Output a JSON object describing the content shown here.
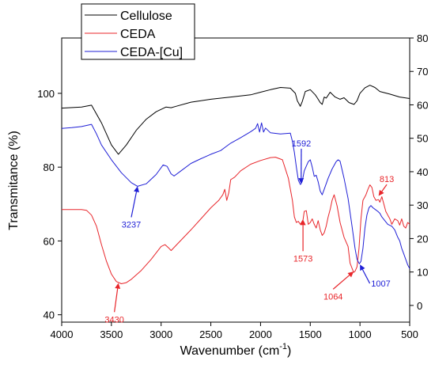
{
  "chart_data": {
    "type": "line",
    "xlabel": "Wavenumber (cm",
    "xlabel_sup": "-1",
    "xlabel_tail": ")",
    "ylabel": "Transmitance (%)",
    "xlim": [
      4000,
      500
    ],
    "ylim_left": [
      38,
      115
    ],
    "ylim_right": [
      -5,
      80
    ],
    "x_ticks": [
      4000,
      3500,
      3000,
      2500,
      2000,
      1500,
      1000,
      500
    ],
    "y_ticks_left": [
      40,
      60,
      80,
      100
    ],
    "y_ticks_right": [
      0,
      10,
      20,
      30,
      40,
      50,
      60,
      70,
      80
    ],
    "legend_position": "top-left",
    "series": [
      {
        "name": "Cellulose",
        "color": "#000000",
        "axis": "left",
        "points": [
          [
            4000,
            96
          ],
          [
            3800,
            96.3
          ],
          [
            3700,
            96.8
          ],
          [
            3600,
            92
          ],
          [
            3500,
            86
          ],
          [
            3430,
            83.5
          ],
          [
            3350,
            86
          ],
          [
            3250,
            90
          ],
          [
            3150,
            93
          ],
          [
            3050,
            95
          ],
          [
            2950,
            96.3
          ],
          [
            2900,
            96.1
          ],
          [
            2850,
            96.5
          ],
          [
            2700,
            97.6
          ],
          [
            2500,
            98.4
          ],
          [
            2300,
            99
          ],
          [
            2100,
            99.6
          ],
          [
            2000,
            100.3
          ],
          [
            1900,
            101
          ],
          [
            1800,
            101.6
          ],
          [
            1700,
            101.4
          ],
          [
            1650,
            100
          ],
          [
            1630,
            98
          ],
          [
            1600,
            96.5
          ],
          [
            1580,
            97.8
          ],
          [
            1550,
            100.5
          ],
          [
            1500,
            101
          ],
          [
            1450,
            99.6
          ],
          [
            1430,
            98.8
          ],
          [
            1400,
            97.5
          ],
          [
            1380,
            97
          ],
          [
            1360,
            99
          ],
          [
            1340,
            98.7
          ],
          [
            1320,
            99.5
          ],
          [
            1300,
            100.3
          ],
          [
            1250,
            99
          ],
          [
            1200,
            98.4
          ],
          [
            1160,
            98.8
          ],
          [
            1110,
            97.5
          ],
          [
            1060,
            97
          ],
          [
            1030,
            98
          ],
          [
            1000,
            100
          ],
          [
            950,
            101.5
          ],
          [
            900,
            102.2
          ],
          [
            850,
            101.6
          ],
          [
            800,
            100.5
          ],
          [
            700,
            99.8
          ],
          [
            600,
            99
          ],
          [
            500,
            98.6
          ]
        ]
      },
      {
        "name": "CEDA",
        "color": "#e8252a",
        "axis": "left",
        "points": [
          [
            4000,
            68.5
          ],
          [
            3800,
            68.5
          ],
          [
            3750,
            68.3
          ],
          [
            3700,
            67
          ],
          [
            3650,
            64
          ],
          [
            3600,
            59
          ],
          [
            3550,
            54.5
          ],
          [
            3500,
            51
          ],
          [
            3450,
            49
          ],
          [
            3400,
            48.4
          ],
          [
            3350,
            48.7
          ],
          [
            3300,
            49.6
          ],
          [
            3200,
            52
          ],
          [
            3100,
            55
          ],
          [
            3000,
            58.5
          ],
          [
            2960,
            59
          ],
          [
            2920,
            58
          ],
          [
            2900,
            57.4
          ],
          [
            2850,
            58.8
          ],
          [
            2700,
            63
          ],
          [
            2600,
            66
          ],
          [
            2500,
            69
          ],
          [
            2420,
            71
          ],
          [
            2380,
            72.5
          ],
          [
            2360,
            74
          ],
          [
            2340,
            71
          ],
          [
            2320,
            73
          ],
          [
            2300,
            76.6
          ],
          [
            2260,
            77.3
          ],
          [
            2200,
            79
          ],
          [
            2100,
            80.8
          ],
          [
            2000,
            81.8
          ],
          [
            1900,
            82.6
          ],
          [
            1850,
            82.7
          ],
          [
            1780,
            82
          ],
          [
            1720,
            77
          ],
          [
            1680,
            71
          ],
          [
            1660,
            66.5
          ],
          [
            1640,
            65
          ],
          [
            1620,
            65.3
          ],
          [
            1600,
            64.5
          ],
          [
            1573,
            65.7
          ],
          [
            1560,
            68
          ],
          [
            1540,
            68.2
          ],
          [
            1520,
            64.5
          ],
          [
            1500,
            65
          ],
          [
            1480,
            66
          ],
          [
            1460,
            64.5
          ],
          [
            1440,
            63.5
          ],
          [
            1420,
            65.5
          ],
          [
            1400,
            63
          ],
          [
            1380,
            61.5
          ],
          [
            1360,
            62.2
          ],
          [
            1340,
            64
          ],
          [
            1320,
            66.5
          ],
          [
            1300,
            68.5
          ],
          [
            1280,
            71
          ],
          [
            1260,
            72.5
          ],
          [
            1230,
            69.5
          ],
          [
            1200,
            65
          ],
          [
            1160,
            61
          ],
          [
            1120,
            58.5
          ],
          [
            1100,
            54
          ],
          [
            1064,
            51.5
          ],
          [
            1050,
            51.8
          ],
          [
            1030,
            53
          ],
          [
            1010,
            58
          ],
          [
            990,
            66
          ],
          [
            970,
            71
          ],
          [
            940,
            72.5
          ],
          [
            920,
            74
          ],
          [
            900,
            75.2
          ],
          [
            880,
            74.5
          ],
          [
            860,
            72
          ],
          [
            840,
            71
          ],
          [
            813,
            71.2
          ],
          [
            800,
            70.5
          ],
          [
            780,
            72
          ],
          [
            760,
            70
          ],
          [
            740,
            68
          ],
          [
            720,
            67
          ],
          [
            700,
            66
          ],
          [
            680,
            64.5
          ],
          [
            650,
            66
          ],
          [
            620,
            65.5
          ],
          [
            600,
            64.3
          ],
          [
            580,
            66
          ],
          [
            560,
            64
          ],
          [
            540,
            63.5
          ],
          [
            520,
            65
          ],
          [
            500,
            64.5
          ]
        ]
      },
      {
        "name": "CEDA-[Cu]",
        "color": "#1f1fd6",
        "axis": "left",
        "points": [
          [
            4000,
            90.5
          ],
          [
            3900,
            90.7
          ],
          [
            3800,
            91
          ],
          [
            3700,
            91.6
          ],
          [
            3650,
            89
          ],
          [
            3600,
            86
          ],
          [
            3500,
            82
          ],
          [
            3400,
            78.5
          ],
          [
            3300,
            75.8
          ],
          [
            3237,
            74.8
          ],
          [
            3150,
            75.5
          ],
          [
            3050,
            78
          ],
          [
            2980,
            80.6
          ],
          [
            2940,
            80.2
          ],
          [
            2900,
            78.2
          ],
          [
            2870,
            77.6
          ],
          [
            2800,
            79
          ],
          [
            2700,
            81
          ],
          [
            2600,
            82.3
          ],
          [
            2500,
            83.5
          ],
          [
            2400,
            84.5
          ],
          [
            2350,
            85.5
          ],
          [
            2300,
            86.5
          ],
          [
            2200,
            88
          ],
          [
            2150,
            88.8
          ],
          [
            2100,
            89.6
          ],
          [
            2050,
            90.5
          ],
          [
            2030,
            91.8
          ],
          [
            2010,
            89.5
          ],
          [
            1990,
            92
          ],
          [
            1970,
            89.5
          ],
          [
            1950,
            90.6
          ],
          [
            1900,
            89.3
          ],
          [
            1800,
            89
          ],
          [
            1700,
            89.2
          ],
          [
            1680,
            87
          ],
          [
            1660,
            84
          ],
          [
            1640,
            80
          ],
          [
            1620,
            76.5
          ],
          [
            1600,
            75.3
          ],
          [
            1592,
            75.5
          ],
          [
            1580,
            76.2
          ],
          [
            1560,
            79
          ],
          [
            1540,
            80.3
          ],
          [
            1520,
            81.5
          ],
          [
            1500,
            82
          ],
          [
            1480,
            80
          ],
          [
            1460,
            77.5
          ],
          [
            1440,
            77.8
          ],
          [
            1420,
            76
          ],
          [
            1400,
            73.5
          ],
          [
            1380,
            72.5
          ],
          [
            1360,
            74
          ],
          [
            1320,
            77
          ],
          [
            1280,
            79.5
          ],
          [
            1240,
            81.5
          ],
          [
            1220,
            82
          ],
          [
            1200,
            81.6
          ],
          [
            1160,
            77
          ],
          [
            1120,
            71.5
          ],
          [
            1080,
            64
          ],
          [
            1050,
            58
          ],
          [
            1030,
            55
          ],
          [
            1007,
            53.8
          ],
          [
            990,
            54.5
          ],
          [
            970,
            58
          ],
          [
            950,
            63.5
          ],
          [
            930,
            67
          ],
          [
            910,
            69
          ],
          [
            890,
            69.6
          ],
          [
            870,
            69
          ],
          [
            850,
            68.6
          ],
          [
            820,
            68
          ],
          [
            800,
            67.5
          ],
          [
            780,
            66.5
          ],
          [
            750,
            65.5
          ],
          [
            720,
            64.5
          ],
          [
            680,
            64
          ],
          [
            650,
            63
          ],
          [
            620,
            61
          ],
          [
            600,
            60
          ],
          [
            580,
            58
          ],
          [
            560,
            56.5
          ],
          [
            540,
            55
          ],
          [
            520,
            53.5
          ],
          [
            500,
            52.5
          ]
        ]
      }
    ],
    "annotations": [
      {
        "text": "3237",
        "color": "#1f1fd6",
        "x": 3237,
        "y": 74.8,
        "text_x": 3300,
        "text_y": 64.5,
        "arrow": true
      },
      {
        "text": "1592",
        "color": "#1f1fd6",
        "x": 1592,
        "y": 75.5,
        "text_x": 1590,
        "text_y": 86.5,
        "arrow": true
      },
      {
        "text": "1007",
        "color": "#1f1fd6",
        "x": 1000,
        "y": 53.6,
        "text_x": 790,
        "text_y": 48.5,
        "arrow": true
      },
      {
        "text": "3430",
        "color": "#e8252a",
        "x": 3430,
        "y": 48.6,
        "text_x": 3470,
        "text_y": 38.8,
        "arrow": true
      },
      {
        "text": "1573",
        "color": "#e8252a",
        "x": 1573,
        "y": 65.8,
        "text_x": 1573,
        "text_y": 55.3,
        "arrow": true
      },
      {
        "text": "1064",
        "color": "#e8252a",
        "x": 1064,
        "y": 51.7,
        "text_x": 1270,
        "text_y": 45,
        "arrow": true
      },
      {
        "text": "813",
        "color": "#e8252a",
        "x": 813,
        "y": 72.2,
        "text_x": 730,
        "text_y": 76.8,
        "arrow": true
      }
    ]
  }
}
